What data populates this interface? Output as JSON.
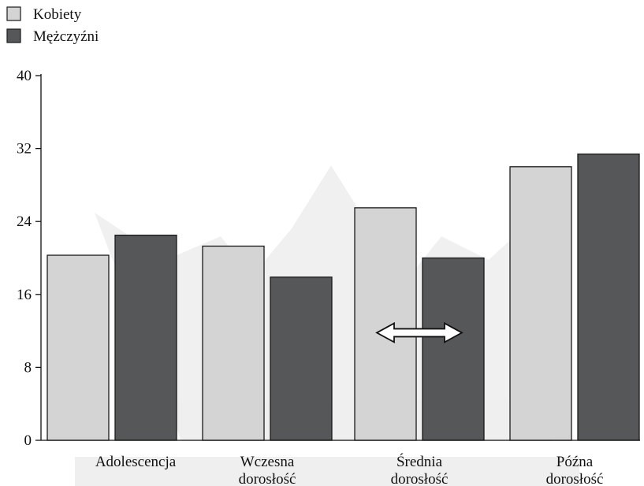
{
  "chart_data": {
    "type": "bar",
    "categories": [
      [
        "Adolescencja"
      ],
      [
        "Wczesna",
        "dorosłość"
      ],
      [
        "Średnia",
        "dorosłość"
      ],
      [
        "Późna",
        "dorosłość"
      ]
    ],
    "series": [
      {
        "name": "Kobiety",
        "color": "#d4d4d4",
        "values": [
          20.3,
          21.3,
          25.5,
          30
        ]
      },
      {
        "name": "Mężczyźni",
        "color": "#555759",
        "values": [
          22.5,
          17.9,
          20,
          31.4
        ]
      }
    ],
    "y_ticks": [
      0,
      8,
      16,
      24,
      32,
      40
    ],
    "ylim": [
      0,
      40
    ],
    "grid": false,
    "legend_position": "top-left",
    "annotations": [
      {
        "kind": "double-arrow",
        "category_index": 2,
        "y": 11.8
      }
    ]
  }
}
